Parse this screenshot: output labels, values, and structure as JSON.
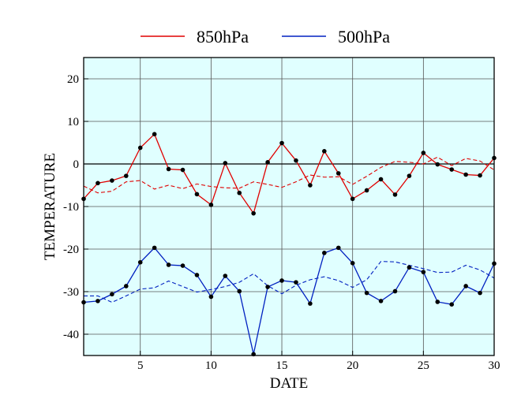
{
  "chart_data": {
    "type": "line",
    "xlabel": "DATE",
    "ylabel": "TEMPERATURE",
    "xlim": [
      1,
      30
    ],
    "ylim": [
      -45,
      25
    ],
    "xticks": [
      5,
      10,
      15,
      20,
      25,
      30
    ],
    "yticks": [
      20,
      10,
      0,
      -10,
      -20,
      -30,
      -40
    ],
    "xgrid": [
      5,
      10,
      15,
      20,
      25
    ],
    "ygrid": [
      20,
      10,
      -10,
      -20,
      -30,
      -40
    ],
    "zero_line": 0,
    "grid": true,
    "plot_background": "#e0ffff",
    "legend_position": "top-center",
    "x": [
      1,
      2,
      3,
      4,
      5,
      6,
      7,
      8,
      9,
      10,
      11,
      12,
      13,
      14,
      15,
      16,
      17,
      18,
      19,
      20,
      21,
      22,
      23,
      24,
      25,
      26,
      27,
      28,
      29,
      30
    ],
    "series": [
      {
        "name": "850hPa",
        "color": "#e00000",
        "values": [
          -8.2,
          -4.5,
          -3.9,
          -2.8,
          3.8,
          7.0,
          -1.2,
          -1.4,
          -7.1,
          -9.6,
          0.2,
          -6.8,
          -11.6,
          0.4,
          4.9,
          0.8,
          -5.0,
          3.0,
          -2.2,
          -8.2,
          -6.2,
          -3.6,
          -7.2,
          -2.8,
          2.6,
          -0.1,
          -1.3,
          -2.5,
          -2.7,
          1.4
        ],
        "climatology": [
          -5.2,
          -6.8,
          -6.4,
          -4.2,
          -3.9,
          -5.9,
          -5.0,
          -5.8,
          -4.7,
          -5.3,
          -5.6,
          -5.7,
          -4.2,
          -4.8,
          -5.5,
          -4.2,
          -2.6,
          -3.1,
          -3.0,
          -4.8,
          -2.9,
          -0.8,
          0.6,
          0.4,
          0.0,
          1.6,
          -0.4,
          1.3,
          0.7,
          -1.4
        ]
      },
      {
        "name": "500hPa",
        "color": "#0020c0",
        "values": [
          -32.5,
          -32.2,
          -30.6,
          -28.7,
          -23.1,
          -19.7,
          -23.7,
          -23.9,
          -26.1,
          -31.2,
          -26.3,
          -29.9,
          -44.7,
          -28.9,
          -27.4,
          -27.8,
          -32.8,
          -20.9,
          -19.7,
          -23.3,
          -30.3,
          -32.2,
          -29.9,
          -24.3,
          -25.4,
          -32.4,
          -33.0,
          -28.7,
          -30.3,
          -23.4
        ],
        "climatology": [
          -31.0,
          -31.0,
          -32.5,
          -31.0,
          -29.4,
          -29.1,
          -27.5,
          -28.8,
          -30.1,
          -29.5,
          -28.8,
          -27.8,
          -25.8,
          -28.6,
          -30.5,
          -28.5,
          -27.2,
          -26.5,
          -27.4,
          -29.0,
          -27.2,
          -22.9,
          -23.0,
          -23.8,
          -24.6,
          -25.5,
          -25.4,
          -23.8,
          -24.9,
          -26.8
        ]
      }
    ]
  }
}
